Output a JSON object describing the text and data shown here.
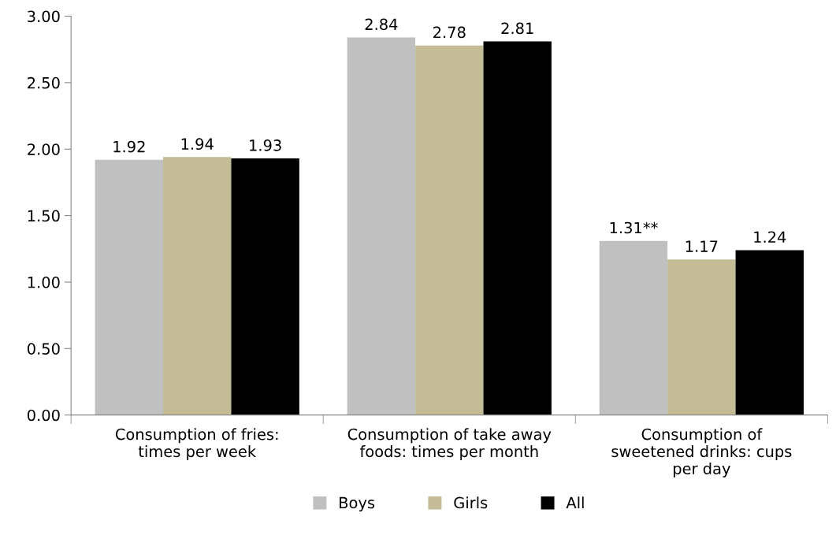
{
  "chart_data": {
    "type": "bar",
    "categories": [
      "Consumption of fries:\ntimes per week",
      "Consumption of take away\nfoods: times per month",
      "Consumption of\nsweetened drinks: cups\nper day"
    ],
    "series": [
      {
        "name": "Boys",
        "color": "#c0c0c0",
        "values": [
          1.92,
          2.84,
          1.31
        ],
        "value_labels": [
          "1.92",
          "2.84",
          "1.31**"
        ]
      },
      {
        "name": "Girls",
        "color": "#c4bc96",
        "values": [
          1.94,
          2.78,
          1.17
        ],
        "value_labels": [
          "1.94",
          "2.78",
          "1.17"
        ]
      },
      {
        "name": "All",
        "color": "#000000",
        "values": [
          1.93,
          2.81,
          1.24
        ],
        "value_labels": [
          "1.93",
          "2.81",
          "1.24"
        ]
      }
    ],
    "ylim": [
      0,
      3
    ],
    "yticks": [
      {
        "value": 0,
        "label": "0.00"
      },
      {
        "value": 0.5,
        "label": "0.50"
      },
      {
        "value": 1,
        "label": "1.00"
      },
      {
        "value": 1.5,
        "label": "1.50"
      },
      {
        "value": 2,
        "label": "2.00"
      },
      {
        "value": 2.5,
        "label": "2.50"
      },
      {
        "value": 3,
        "label": "3.00"
      }
    ],
    "grid": false,
    "legend": "bottom"
  }
}
